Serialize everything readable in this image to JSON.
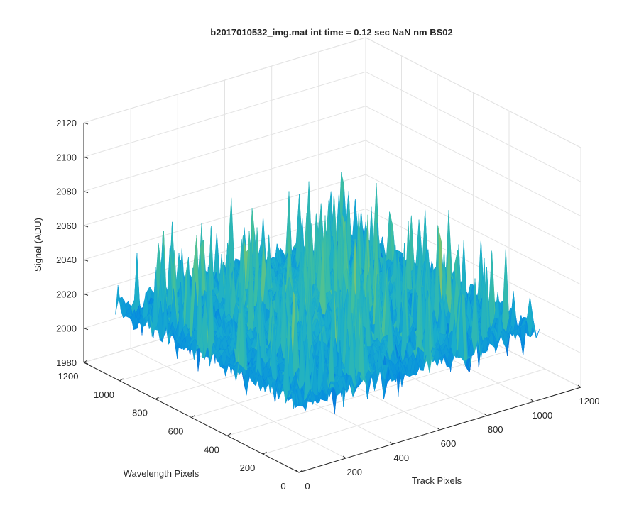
{
  "chart_data": {
    "type": "surface",
    "title": "b2017010532_img.mat int time = 0.12 sec  NaN nm BS02",
    "xlabel": "Track Pixels",
    "ylabel": "Wavelength Pixels",
    "zlabel": "Signal (ADU)",
    "xlim": [
      0,
      1200
    ],
    "ylim": [
      0,
      1200
    ],
    "zlim": [
      1980,
      2120
    ],
    "x_ticks": [
      "0",
      "200",
      "400",
      "600",
      "800",
      "1000",
      "1200"
    ],
    "y_ticks": [
      "0",
      "200",
      "400",
      "600",
      "800",
      "1000",
      "1200"
    ],
    "z_ticks": [
      "1980",
      "2000",
      "2020",
      "2040",
      "2060",
      "2080",
      "2100",
      "2120"
    ],
    "surface": {
      "x_range": [
        0,
        1024
      ],
      "y_range": [
        0,
        1024
      ],
      "z_mean": 2020,
      "z_min_approx": 1985,
      "z_max_approx": 2110,
      "colormap": "parula"
    },
    "grid": true,
    "view": "3d"
  }
}
